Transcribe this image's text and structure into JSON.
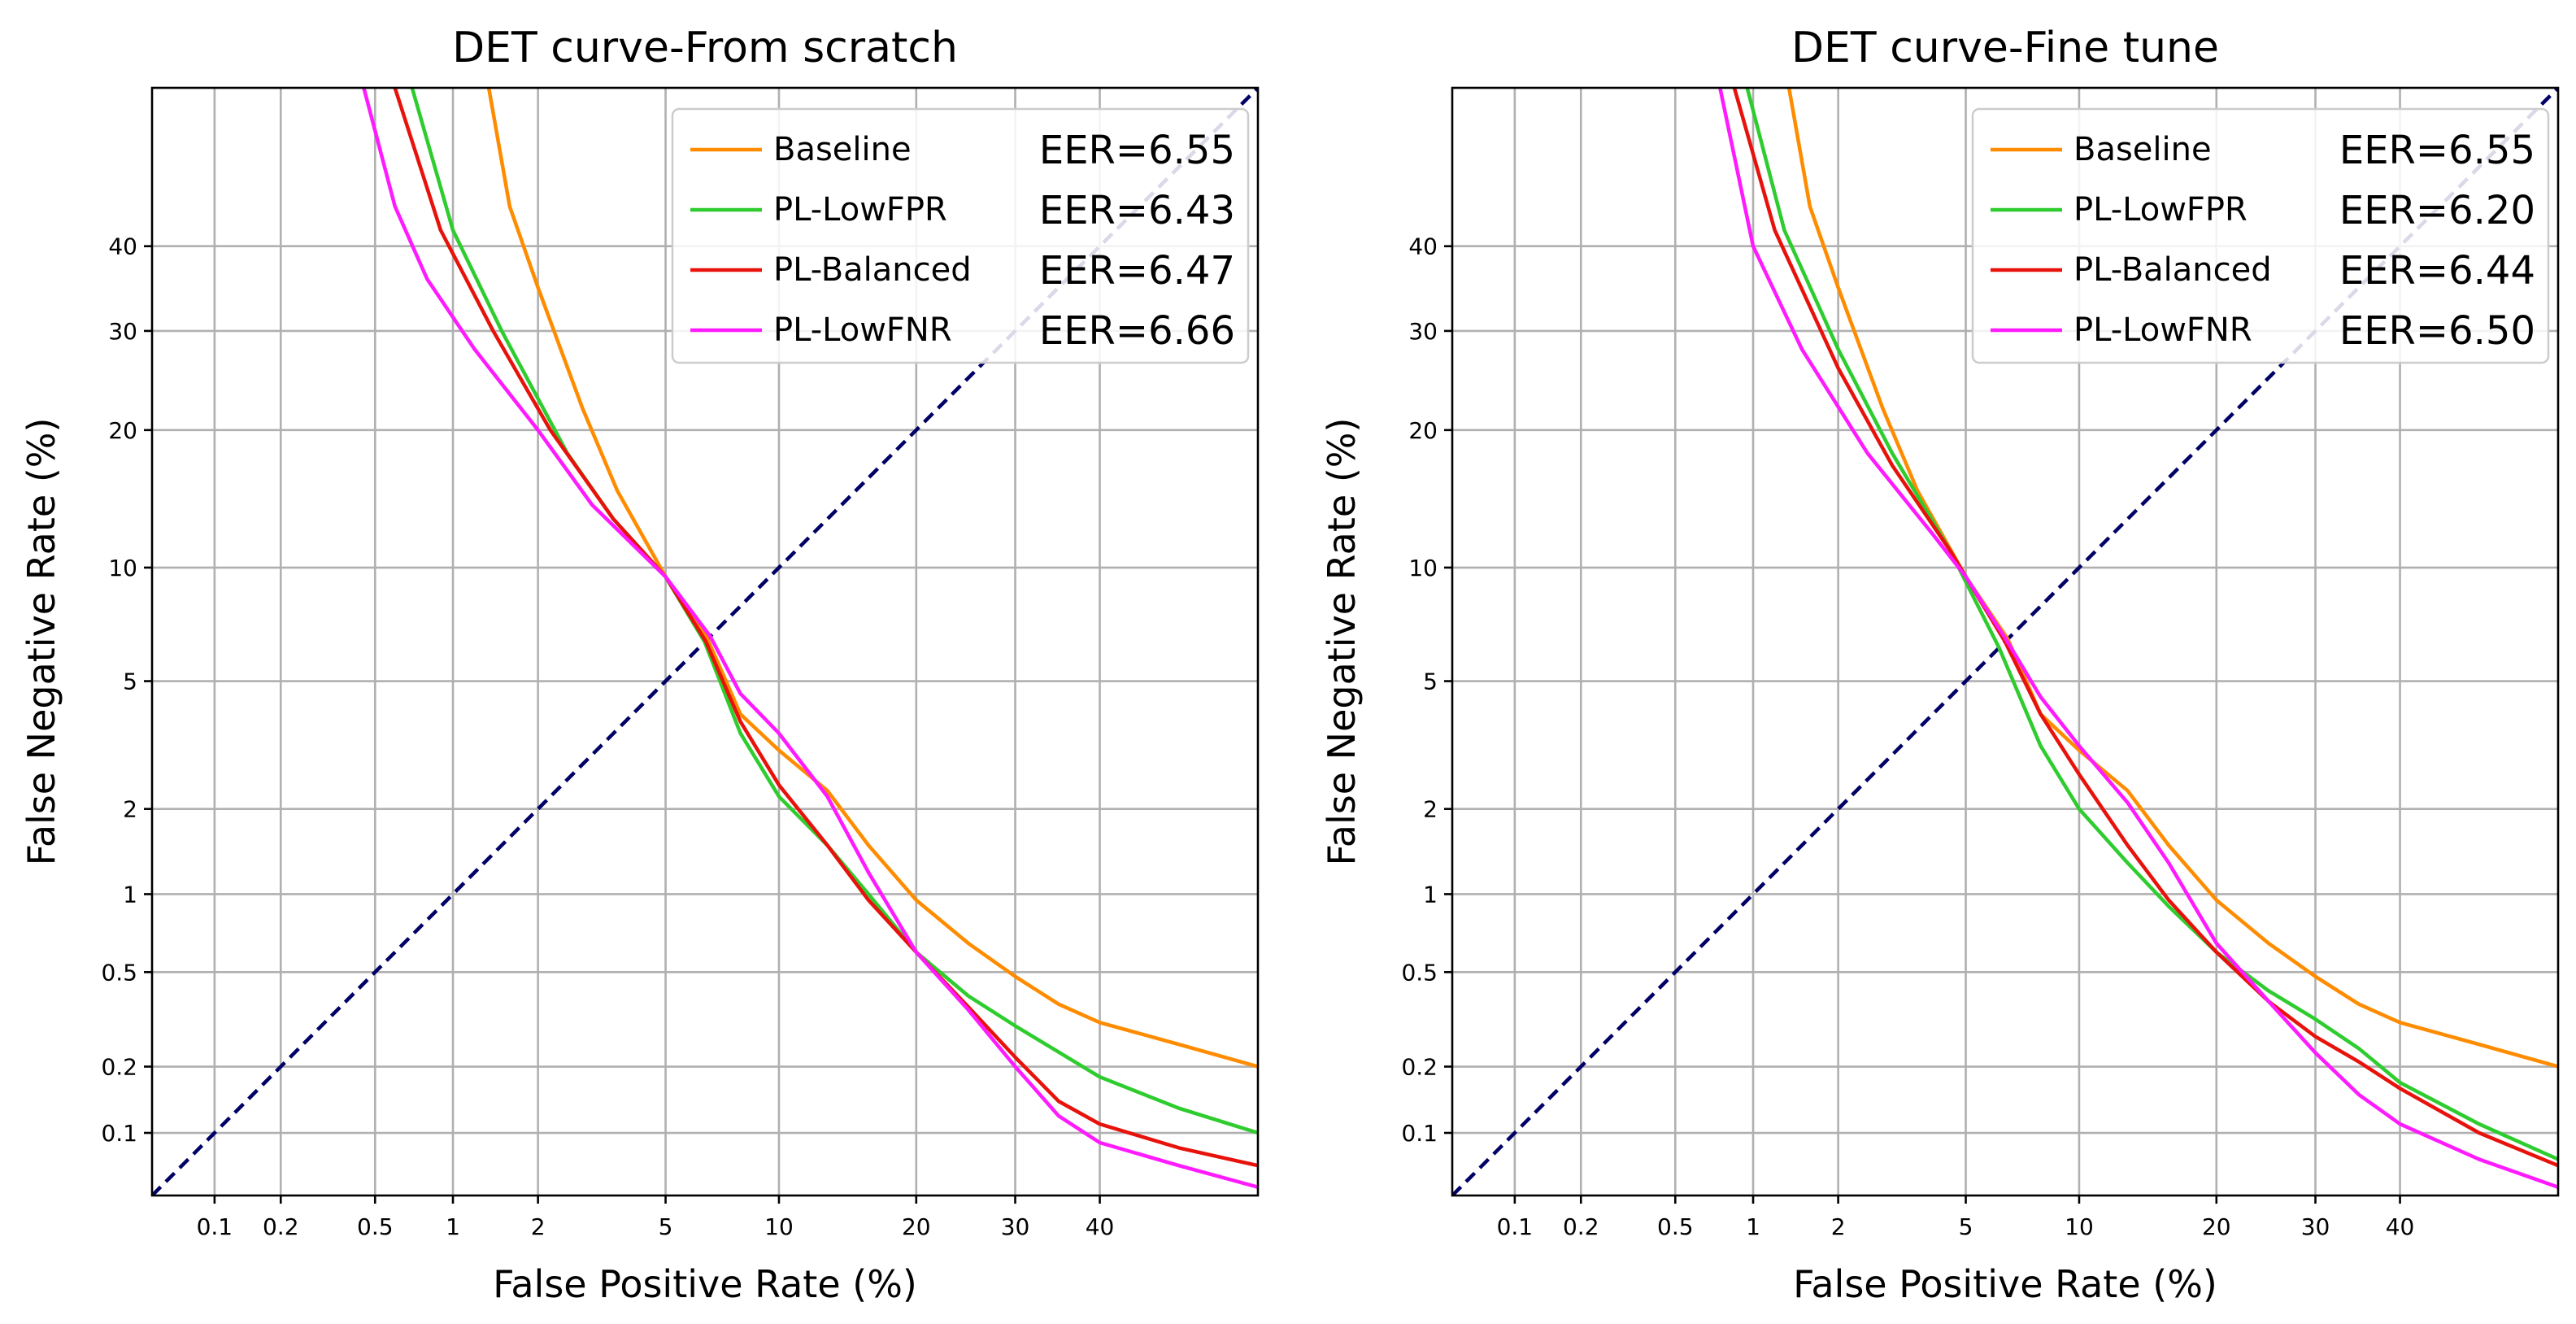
{
  "chart_data": [
    {
      "type": "line",
      "title": "DET curve-From scratch",
      "xlabel": "False Positive Rate (%)",
      "ylabel": "False Negative Rate (%)",
      "scale": "probit (normal deviate)",
      "xlim": [
        0.05,
        60
      ],
      "ylim": [
        0.05,
        60
      ],
      "xticks": [
        "0.1",
        "0.2",
        "0.5",
        "1",
        "2",
        "5",
        "10",
        "20",
        "30",
        "40"
      ],
      "yticks": [
        "0.1",
        "0.2",
        "0.5",
        "1",
        "2",
        "5",
        "10",
        "20",
        "30",
        "40"
      ],
      "grid": true,
      "legend_position": "top-right",
      "reference_line": {
        "style": "dashed",
        "color": "#000066",
        "points": [
          [
            0.05,
            0.05
          ],
          [
            60,
            60
          ]
        ]
      },
      "series": [
        {
          "name": "Baseline",
          "eer_label": "EER=6.55",
          "color": "#ff8c00",
          "points": [
            [
              1.35,
              60
            ],
            [
              1.6,
              45
            ],
            [
              2,
              35
            ],
            [
              2.8,
              22
            ],
            [
              3.6,
              15
            ],
            [
              5,
              9.5
            ],
            [
              6.55,
              6.55
            ],
            [
              8,
              4
            ],
            [
              10,
              3.1
            ],
            [
              13,
              2.3
            ],
            [
              16,
              1.5
            ],
            [
              20,
              0.95
            ],
            [
              25,
              0.65
            ],
            [
              30,
              0.48
            ],
            [
              35,
              0.37
            ],
            [
              40,
              0.31
            ],
            [
              50,
              0.25
            ],
            [
              60,
              0.2
            ]
          ]
        },
        {
          "name": "PL-LowFPR",
          "eer_label": "EER=6.43",
          "color": "#2ecc2e",
          "points": [
            [
              0.7,
              60
            ],
            [
              1,
              42
            ],
            [
              1.5,
              30
            ],
            [
              2.5,
              18
            ],
            [
              3.5,
              13
            ],
            [
              5,
              9.5
            ],
            [
              6.43,
              6.43
            ],
            [
              8,
              3.5
            ],
            [
              10,
              2.2
            ],
            [
              13,
              1.5
            ],
            [
              16,
              1
            ],
            [
              20,
              0.6
            ],
            [
              25,
              0.4
            ],
            [
              30,
              0.3
            ],
            [
              40,
              0.18
            ],
            [
              50,
              0.13
            ],
            [
              60,
              0.1
            ]
          ]
        },
        {
          "name": "PL-Balanced",
          "eer_label": "EER=6.47",
          "color": "#e8120c",
          "points": [
            [
              0.6,
              60
            ],
            [
              0.9,
              42
            ],
            [
              1.4,
              30
            ],
            [
              2.2,
              20
            ],
            [
              3.5,
              13
            ],
            [
              5,
              9.5
            ],
            [
              6.47,
              6.47
            ],
            [
              8,
              3.8
            ],
            [
              10,
              2.4
            ],
            [
              13,
              1.5
            ],
            [
              16,
              0.95
            ],
            [
              20,
              0.6
            ],
            [
              25,
              0.36
            ],
            [
              30,
              0.22
            ],
            [
              35,
              0.14
            ],
            [
              40,
              0.11
            ],
            [
              50,
              0.085
            ],
            [
              60,
              0.07
            ]
          ]
        },
        {
          "name": "PL-LowFNR",
          "eer_label": "EER=6.66",
          "color": "#ff1aff",
          "points": [
            [
              0.45,
              60
            ],
            [
              0.6,
              45
            ],
            [
              0.8,
              36
            ],
            [
              1.2,
              28
            ],
            [
              2,
              20
            ],
            [
              3,
              14
            ],
            [
              5,
              9.5
            ],
            [
              6.66,
              6.66
            ],
            [
              8,
              4.6
            ],
            [
              10,
              3.5
            ],
            [
              13,
              2.2
            ],
            [
              16,
              1.2
            ],
            [
              20,
              0.6
            ],
            [
              25,
              0.35
            ],
            [
              30,
              0.2
            ],
            [
              35,
              0.12
            ],
            [
              40,
              0.09
            ],
            [
              50,
              0.07
            ],
            [
              60,
              0.055
            ]
          ]
        }
      ]
    },
    {
      "type": "line",
      "title": "DET curve-Fine tune",
      "xlabel": "False Positive Rate (%)",
      "ylabel": "False Negative Rate (%)",
      "scale": "probit (normal deviate)",
      "xlim": [
        0.05,
        60
      ],
      "ylim": [
        0.05,
        60
      ],
      "xticks": [
        "0.1",
        "0.2",
        "0.5",
        "1",
        "2",
        "5",
        "10",
        "20",
        "30",
        "40"
      ],
      "yticks": [
        "0.1",
        "0.2",
        "0.5",
        "1",
        "2",
        "5",
        "10",
        "20",
        "30",
        "40"
      ],
      "grid": true,
      "legend_position": "top-right",
      "reference_line": {
        "style": "dashed",
        "color": "#000066",
        "points": [
          [
            0.05,
            0.05
          ],
          [
            60,
            60
          ]
        ]
      },
      "series": [
        {
          "name": "Baseline",
          "eer_label": "EER=6.55",
          "color": "#ff8c00",
          "points": [
            [
              1.35,
              60
            ],
            [
              1.6,
              45
            ],
            [
              2,
              35
            ],
            [
              2.8,
              22
            ],
            [
              3.6,
              15
            ],
            [
              5,
              9.5
            ],
            [
              6.55,
              6.55
            ],
            [
              8,
              4
            ],
            [
              10,
              3.1
            ],
            [
              13,
              2.3
            ],
            [
              16,
              1.5
            ],
            [
              20,
              0.95
            ],
            [
              25,
              0.65
            ],
            [
              30,
              0.48
            ],
            [
              35,
              0.37
            ],
            [
              40,
              0.31
            ],
            [
              50,
              0.25
            ],
            [
              60,
              0.2
            ]
          ]
        },
        {
          "name": "PL-LowFPR",
          "eer_label": "EER=6.20",
          "color": "#2ecc2e",
          "points": [
            [
              0.95,
              60
            ],
            [
              1.3,
              42
            ],
            [
              2,
              28
            ],
            [
              3,
              18
            ],
            [
              4.5,
              11
            ],
            [
              6.2,
              6.2
            ],
            [
              8,
              3.2
            ],
            [
              10,
              2
            ],
            [
              13,
              1.3
            ],
            [
              16,
              0.9
            ],
            [
              20,
              0.6
            ],
            [
              25,
              0.42
            ],
            [
              30,
              0.32
            ],
            [
              35,
              0.24
            ],
            [
              40,
              0.17
            ],
            [
              50,
              0.11
            ],
            [
              60,
              0.075
            ]
          ]
        },
        {
          "name": "PL-Balanced",
          "eer_label": "EER=6.44",
          "color": "#e8120c",
          "points": [
            [
              0.85,
              60
            ],
            [
              1.2,
              42
            ],
            [
              2,
              26
            ],
            [
              3,
              17
            ],
            [
              4.5,
              11
            ],
            [
              6.44,
              6.44
            ],
            [
              8,
              4
            ],
            [
              10,
              2.6
            ],
            [
              13,
              1.5
            ],
            [
              16,
              0.95
            ],
            [
              20,
              0.6
            ],
            [
              25,
              0.38
            ],
            [
              30,
              0.27
            ],
            [
              35,
              0.21
            ],
            [
              40,
              0.16
            ],
            [
              50,
              0.1
            ],
            [
              60,
              0.07
            ]
          ]
        },
        {
          "name": "PL-LowFNR",
          "eer_label": "EER=6.50",
          "color": "#ff1aff",
          "points": [
            [
              0.75,
              60
            ],
            [
              1,
              40
            ],
            [
              1.5,
              28
            ],
            [
              2.5,
              18
            ],
            [
              4,
              12
            ],
            [
              5,
              9.5
            ],
            [
              6.5,
              6.5
            ],
            [
              8,
              4.5
            ],
            [
              10,
              3.2
            ],
            [
              13,
              2.1
            ],
            [
              16,
              1.3
            ],
            [
              20,
              0.65
            ],
            [
              25,
              0.38
            ],
            [
              30,
              0.23
            ],
            [
              35,
              0.15
            ],
            [
              40,
              0.11
            ],
            [
              50,
              0.075
            ],
            [
              60,
              0.055
            ]
          ]
        }
      ]
    }
  ]
}
